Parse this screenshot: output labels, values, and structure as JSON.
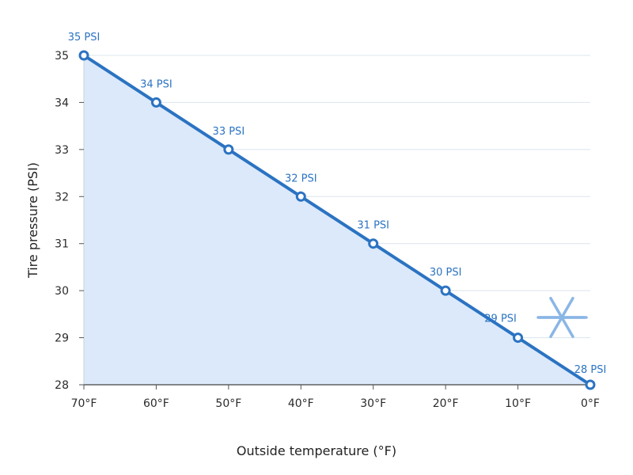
{
  "chart_data": {
    "type": "area",
    "x": [
      "70°F",
      "60°F",
      "50°F",
      "40°F",
      "30°F",
      "20°F",
      "10°F",
      "0°F"
    ],
    "values": [
      35,
      34,
      33,
      32,
      31,
      30,
      29,
      28
    ],
    "data_labels": [
      "35 PSI",
      "34 PSI",
      "33 PSI",
      "32 PSI",
      "31 PSI",
      "30 PSI",
      "29 PSI",
      "28 PSI"
    ],
    "y_ticks": [
      "28",
      "29",
      "30",
      "31",
      "32",
      "33",
      "34",
      "35"
    ],
    "xlabel": "Outside temperature (°F)",
    "ylabel": "Tire pressure (PSI)",
    "ylim": [
      28,
      35
    ],
    "grid": true,
    "annotation_icon": "snowflake-icon",
    "colors": {
      "line": "#2b73c2",
      "fill": "#dce9fb",
      "label": "#2b73c2",
      "grid": "#dbe4ee",
      "snowflake": "#8ab6e6"
    }
  }
}
